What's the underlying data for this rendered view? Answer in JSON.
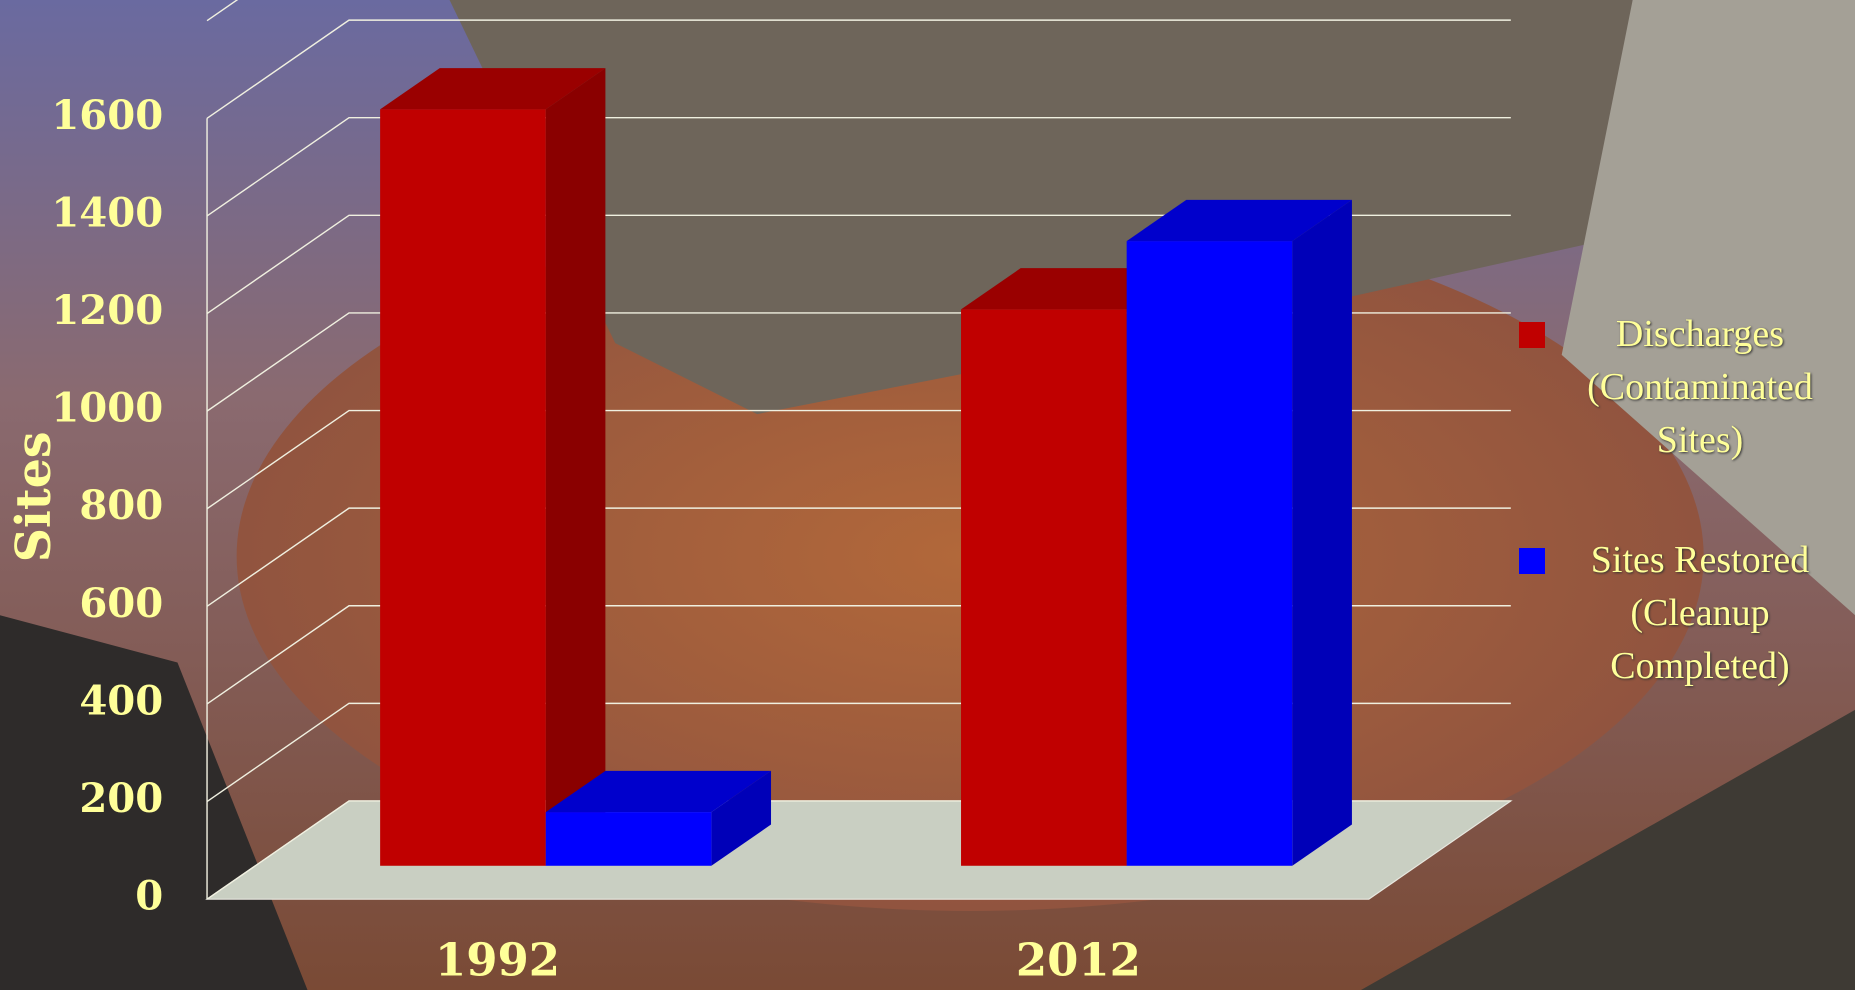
{
  "chart_data": {
    "type": "bar3d",
    "y_label": "Sites",
    "categories": [
      "1992",
      "2012"
    ],
    "series": [
      {
        "name": "Discharges (Contaminated Sites)",
        "color": "#c00000",
        "values": [
          1550,
          1140
        ]
      },
      {
        "name": "Sites Restored (Cleanup Completed)",
        "color": "#0000ff",
        "values": [
          110,
          1280
        ]
      }
    ],
    "ylim": [
      0,
      1800
    ],
    "yticks": [
      0,
      200,
      400,
      600,
      800,
      1000,
      1200,
      1400,
      1600
    ],
    "grid": true,
    "legend": "right"
  }
}
